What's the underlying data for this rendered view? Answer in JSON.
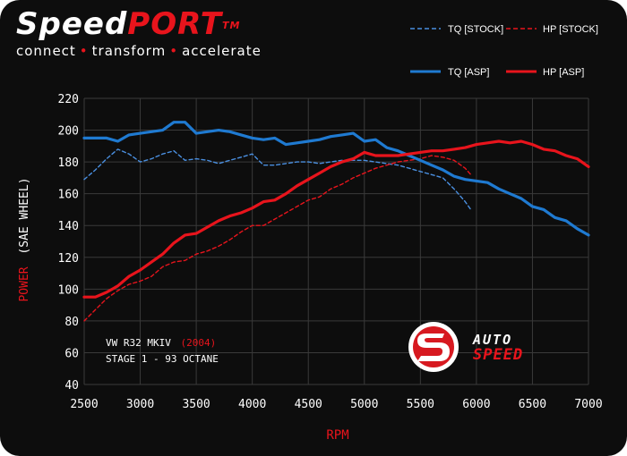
{
  "brand": {
    "name_white": "Speed",
    "name_red": "PORT",
    "trademark": "TM",
    "tagline_parts": [
      "connect",
      "transform",
      "accelerate"
    ]
  },
  "annotation": {
    "line1_prefix": "VW R32 MKIV",
    "line1_year": "(2004)",
    "line2": "STAGE 1 - 93 OCTANE"
  },
  "logo": {
    "text_top": "AUTO",
    "text_bottom": "SPEED"
  },
  "colors": {
    "tq": "#1f7ad1",
    "hp": "#e8141c",
    "background": "#0d0d0d",
    "grid": "#3a3a3a"
  },
  "chart_data": {
    "type": "line",
    "xlabel": "RPM",
    "ylabel_part1": "POWER",
    "ylabel_part2": "(SAE WHEEL)",
    "xlim": [
      2500,
      7000
    ],
    "ylim": [
      40,
      220
    ],
    "x_ticks": [
      2500,
      3000,
      3500,
      4000,
      4500,
      5000,
      5500,
      6000,
      6500,
      7000
    ],
    "y_ticks": [
      40,
      60,
      80,
      100,
      120,
      140,
      160,
      180,
      200,
      220
    ],
    "grid": true,
    "legend_position": "top-right",
    "series": [
      {
        "name": "TQ [STOCK]",
        "style": "dashed",
        "color": "#4a8fe0",
        "x": [
          2500,
          2600,
          2700,
          2800,
          2900,
          3000,
          3100,
          3200,
          3300,
          3400,
          3500,
          3600,
          3700,
          3800,
          3900,
          4000,
          4100,
          4200,
          4300,
          4400,
          4500,
          4600,
          4700,
          4800,
          4900,
          5000,
          5100,
          5200,
          5300,
          5400,
          5500,
          5600,
          5700,
          5800,
          5900,
          5950
        ],
        "y": [
          169,
          175,
          182,
          188,
          185,
          180,
          182,
          185,
          187,
          181,
          182,
          181,
          179,
          181,
          183,
          185,
          178,
          178,
          179,
          180,
          180,
          179,
          180,
          181,
          181,
          181,
          180,
          179,
          178,
          176,
          174,
          172,
          170,
          163,
          155,
          150
        ]
      },
      {
        "name": "HP [STOCK]",
        "style": "dashed",
        "color": "#e8141c",
        "x": [
          2500,
          2600,
          2700,
          2800,
          2900,
          3000,
          3100,
          3200,
          3300,
          3400,
          3500,
          3600,
          3700,
          3800,
          3900,
          4000,
          4100,
          4200,
          4300,
          4400,
          4500,
          4600,
          4700,
          4800,
          4900,
          5000,
          5100,
          5200,
          5300,
          5400,
          5500,
          5600,
          5700,
          5800,
          5900,
          5950
        ],
        "y": [
          80,
          87,
          94,
          99,
          103,
          105,
          108,
          114,
          117,
          118,
          122,
          124,
          127,
          131,
          136,
          140,
          140,
          144,
          148,
          152,
          156,
          158,
          163,
          166,
          170,
          173,
          176,
          178,
          180,
          181,
          182,
          184,
          183,
          181,
          176,
          172
        ]
      },
      {
        "name": "TQ [ASP]",
        "style": "solid",
        "color": "#1f7ad1",
        "x": [
          2500,
          2600,
          2700,
          2800,
          2900,
          3000,
          3100,
          3200,
          3300,
          3400,
          3500,
          3600,
          3700,
          3800,
          3900,
          4000,
          4100,
          4200,
          4300,
          4400,
          4500,
          4600,
          4700,
          4800,
          4900,
          5000,
          5100,
          5200,
          5300,
          5400,
          5500,
          5600,
          5700,
          5800,
          5900,
          6000,
          6100,
          6200,
          6300,
          6400,
          6500,
          6600,
          6700,
          6800,
          6900,
          7000
        ],
        "y": [
          195,
          195,
          195,
          193,
          197,
          198,
          199,
          200,
          205,
          205,
          198,
          199,
          200,
          199,
          197,
          195,
          194,
          195,
          191,
          192,
          193,
          194,
          196,
          197,
          198,
          193,
          194,
          189,
          187,
          184,
          181,
          178,
          175,
          171,
          169,
          168,
          167,
          163,
          160,
          157,
          152,
          150,
          145,
          143,
          138,
          134
        ]
      },
      {
        "name": "HP [ASP]",
        "style": "solid",
        "color": "#e8141c",
        "x": [
          2500,
          2600,
          2700,
          2800,
          2900,
          3000,
          3100,
          3200,
          3300,
          3400,
          3500,
          3600,
          3700,
          3800,
          3900,
          4000,
          4100,
          4200,
          4300,
          4400,
          4500,
          4600,
          4700,
          4800,
          4900,
          5000,
          5100,
          5200,
          5300,
          5400,
          5500,
          5600,
          5700,
          5800,
          5900,
          6000,
          6100,
          6200,
          6300,
          6400,
          6500,
          6600,
          6700,
          6800,
          6900,
          7000
        ],
        "y": [
          95,
          95,
          98,
          102,
          108,
          112,
          117,
          122,
          129,
          134,
          135,
          139,
          143,
          146,
          148,
          151,
          155,
          156,
          160,
          165,
          169,
          173,
          177,
          180,
          182,
          186,
          184,
          184,
          184,
          185,
          186,
          187,
          187,
          188,
          189,
          191,
          192,
          193,
          192,
          193,
          191,
          188,
          187,
          184,
          182,
          177
        ]
      }
    ]
  }
}
